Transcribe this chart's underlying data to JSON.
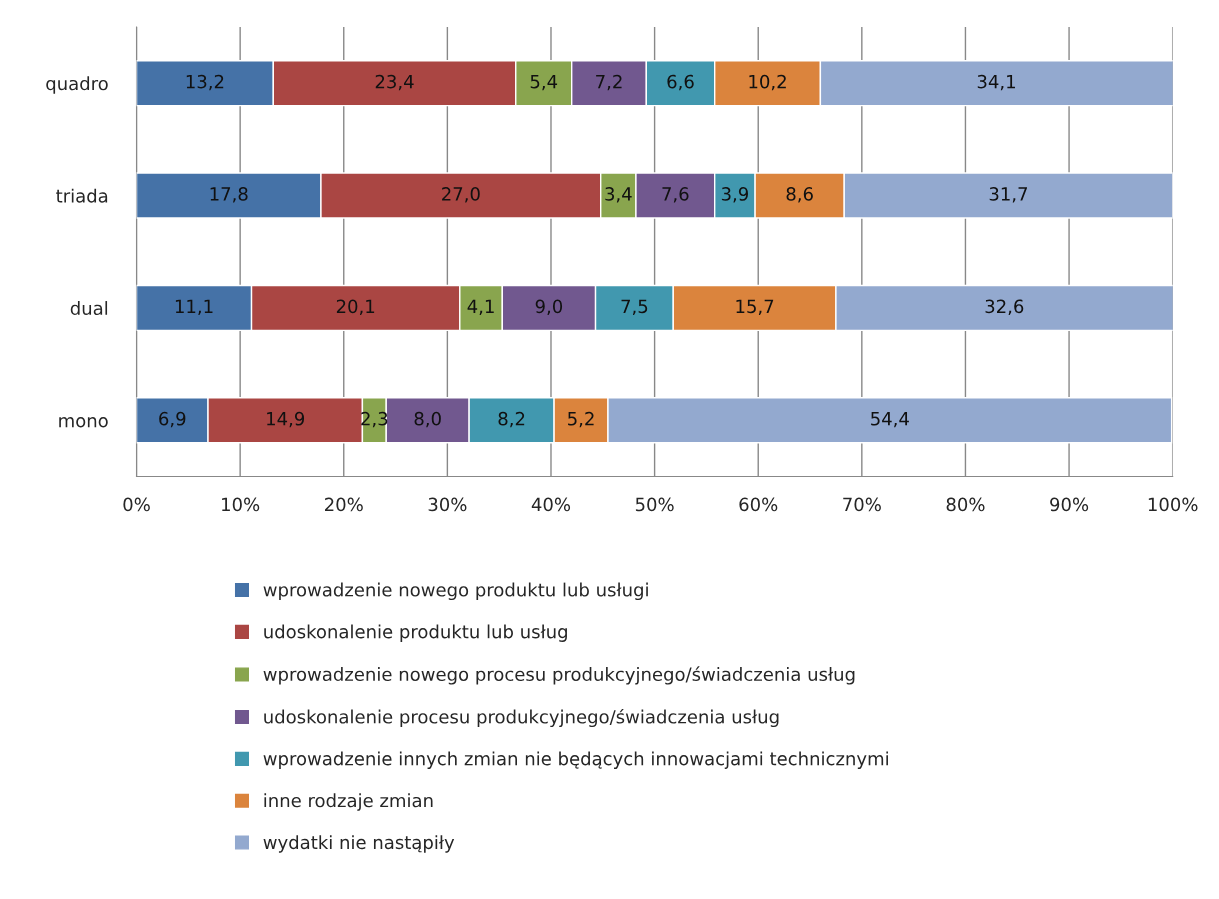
{
  "chart_data": {
    "type": "bar",
    "orientation": "horizontal",
    "stacked": true,
    "categories": [
      "quadro",
      "triada",
      "dual",
      "mono"
    ],
    "series": [
      {
        "name": "wprowadzenie nowego produktu lub usługi",
        "color": "#4572a7",
        "values": [
          13.2,
          17.8,
          11.1,
          6.9
        ],
        "value_labels": [
          "13,2",
          "17,8",
          "11,1",
          "6,9"
        ]
      },
      {
        "name": "udoskonalenie produktu lub usług",
        "color": "#aa4643",
        "values": [
          23.4,
          27.0,
          20.1,
          14.9
        ],
        "value_labels": [
          "23,4",
          "27,0",
          "20,1",
          "14,9"
        ]
      },
      {
        "name": "wprowadzenie nowego procesu produkcyjnego/świadczenia usług",
        "color": "#89a54e",
        "values": [
          5.4,
          3.4,
          4.1,
          2.3
        ],
        "value_labels": [
          "5,4",
          "3,4",
          "4,1",
          "2,3"
        ]
      },
      {
        "name": "udoskonalenie procesu produkcyjnego/świadczenia usług",
        "color": "#71588f",
        "values": [
          7.2,
          7.6,
          9.0,
          8.0
        ],
        "value_labels": [
          "7,2",
          "7,6",
          "9,0",
          "8,0"
        ]
      },
      {
        "name": "wprowadzenie innych zmian nie będących innowacjami technicznymi",
        "color": "#4198af",
        "values": [
          6.6,
          3.9,
          7.5,
          8.2
        ],
        "value_labels": [
          "6,6",
          "3,9",
          "7,5",
          "8,2"
        ]
      },
      {
        "name": "inne rodzaje zmian",
        "color": "#db843d",
        "values": [
          10.2,
          8.6,
          15.7,
          5.2
        ],
        "value_labels": [
          "10,2",
          "8,6",
          "15,7",
          "5,2"
        ]
      },
      {
        "name": "wydatki nie nastąpiły",
        "color": "#93a9cf",
        "values": [
          34.1,
          31.7,
          32.6,
          54.4
        ],
        "value_labels": [
          "34,1",
          "31,7",
          "32,6",
          "54,4"
        ]
      }
    ],
    "xlim": [
      0,
      100
    ],
    "xticks": [
      {
        "value": 0,
        "label": "0%"
      },
      {
        "value": 10,
        "label": "10%"
      },
      {
        "value": 20,
        "label": "20%"
      },
      {
        "value": 30,
        "label": "30%"
      },
      {
        "value": 40,
        "label": "40%"
      },
      {
        "value": 50,
        "label": "50%"
      },
      {
        "value": 60,
        "label": "60%"
      },
      {
        "value": 70,
        "label": "70%"
      },
      {
        "value": 80,
        "label": "80%"
      },
      {
        "value": 90,
        "label": "90%"
      },
      {
        "value": 100,
        "label": "100%"
      }
    ],
    "grid": "x",
    "legend": "bottom"
  }
}
